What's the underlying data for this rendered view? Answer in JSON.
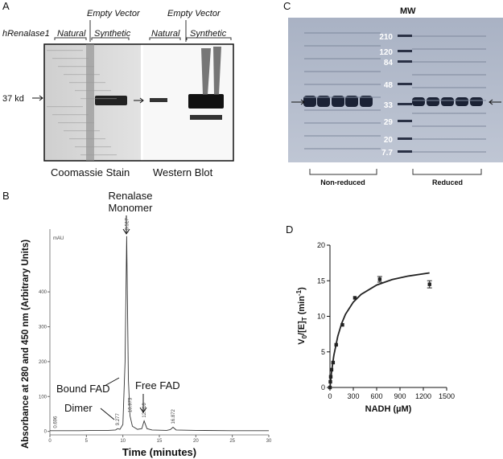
{
  "panel_a": {
    "label": "A",
    "vector_top_1": "Empty Vector",
    "vector_top_2": "Empty Vector",
    "row_label": "hRenalase1",
    "natural_1": "Natural",
    "synthetic_1": "Synthetic",
    "natural_2": "Natural",
    "synthetic_2": "Synthetic",
    "size_marker": "37 kd",
    "caption_left": "Coomassie Stain",
    "caption_right": "Western Blot"
  },
  "panel_c": {
    "label": "C",
    "mw_title": "MW",
    "mw_markers": [
      "210",
      "120",
      "84",
      "48",
      "33",
      "29",
      "20",
      "7.7"
    ],
    "group_left": "Non-reduced",
    "group_right": "Reduced"
  },
  "panel_b": {
    "label": "B",
    "annotation_monomer_1": "Renalase",
    "annotation_monomer_2": "Monomer",
    "annotation_bound": "Bound  FAD",
    "annotation_free": "Free FAD",
    "annotation_dimer": "Dimer",
    "unit_label": "mAU",
    "chart_data": {
      "type": "line",
      "xlabel": "Time (minutes)",
      "ylabel": "Absorbance at 280 and 450 nm (Arbitrary Units)",
      "xlim": [
        0,
        30
      ],
      "ylim": [
        -10,
        580
      ],
      "xticks": [
        0,
        5,
        10,
        15,
        20,
        25,
        30
      ],
      "yticks": [
        0,
        100,
        200,
        300,
        400
      ],
      "color": "#333333",
      "x": [
        0,
        2,
        4,
        6,
        8,
        9,
        9.277,
        9.6,
        10,
        10.3,
        10.517,
        10.75,
        10.973,
        11.3,
        12,
        12.6,
        12.916,
        13.3,
        14,
        16,
        16.5,
        16.872,
        17.3,
        20,
        25,
        30
      ],
      "values": [
        2,
        2,
        2,
        3,
        3,
        4,
        8,
        6,
        20,
        200,
        560,
        150,
        45,
        15,
        6,
        8,
        30,
        8,
        4,
        3,
        5,
        12,
        4,
        3,
        2,
        2
      ],
      "peak_labels": [
        {
          "value": 0.696,
          "label": "0.696"
        },
        {
          "value": 9.277,
          "label": "9.277"
        },
        {
          "value": 10.517,
          "label": "10.517"
        },
        {
          "value": 10.973,
          "label": "10.973"
        },
        {
          "value": 12.916,
          "label": "12.916"
        },
        {
          "value": 16.872,
          "label": "16.872"
        }
      ]
    }
  },
  "panel_d": {
    "label": "D",
    "ylabel": {
      "main": "V",
      "sub": "0",
      "mid": "/[E]",
      "sub2": "T",
      "unit": " (min",
      "sup": "-1",
      "end": ")"
    },
    "chart_data": {
      "type": "scatter",
      "xlabel": "NADH (µM)",
      "xlim": [
        0,
        1500
      ],
      "ylim": [
        0,
        20
      ],
      "xticks": [
        0,
        300,
        600,
        900,
        1200,
        1500
      ],
      "yticks": [
        0,
        5,
        10,
        15,
        20
      ],
      "color": "#222222",
      "x": [
        0,
        5,
        10,
        20,
        40,
        80,
        160,
        320,
        640,
        1280
      ],
      "values": [
        0,
        0.8,
        1.5,
        2.5,
        3.5,
        6,
        8.8,
        12.6,
        15.2,
        14.5
      ],
      "errors": [
        0,
        0,
        0,
        0,
        0,
        0,
        0,
        0,
        0.4,
        0.5
      ],
      "fit": {
        "x": [
          0,
          20,
          50,
          100,
          150,
          200,
          300,
          400,
          600,
          800,
          1000,
          1280
        ],
        "values": [
          0,
          2.12,
          4.5,
          7.2,
          9,
          10.29,
          12,
          13.09,
          14.4,
          15.16,
          15.65,
          16.1
        ]
      }
    }
  }
}
